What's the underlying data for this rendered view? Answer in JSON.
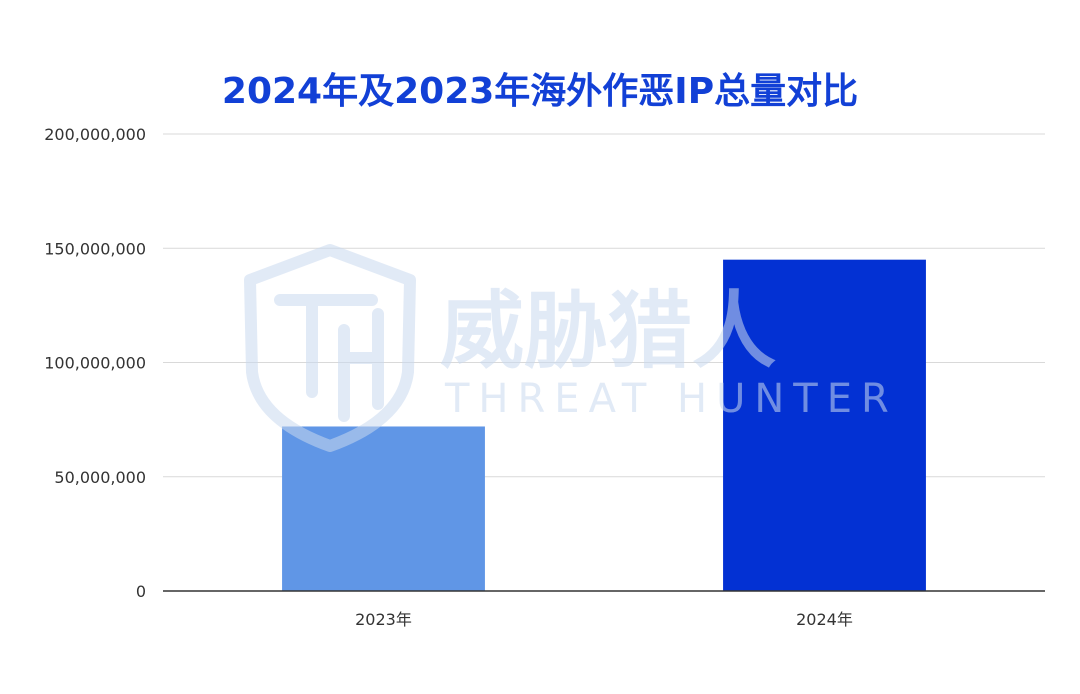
{
  "colors": {
    "title": "#1240d6",
    "bar_2023": "#6096e6",
    "bar_2024": "#0331d3",
    "grid": "#d9d9d9",
    "axis": "#333333",
    "watermark": "#c9d9ef"
  },
  "watermark": {
    "logo_icon": "th-shield-logo-icon",
    "cn": "威胁猎人",
    "en": "THREAT HUNTER"
  },
  "chart_data": {
    "type": "bar",
    "title": "2024年及2023年海外作恶IP总量对比",
    "xlabel": "",
    "ylabel": "",
    "categories": [
      "2023年",
      "2024年"
    ],
    "values": [
      72000000,
      145000000
    ],
    "ylim": [
      0,
      200000000
    ],
    "yticks": [
      0,
      50000000,
      100000000,
      150000000,
      200000000
    ],
    "ytick_labels": [
      "0",
      "50,000,000",
      "100,000,000",
      "150,000,000",
      "200,000,000"
    ],
    "grid": true,
    "legend": "none"
  }
}
